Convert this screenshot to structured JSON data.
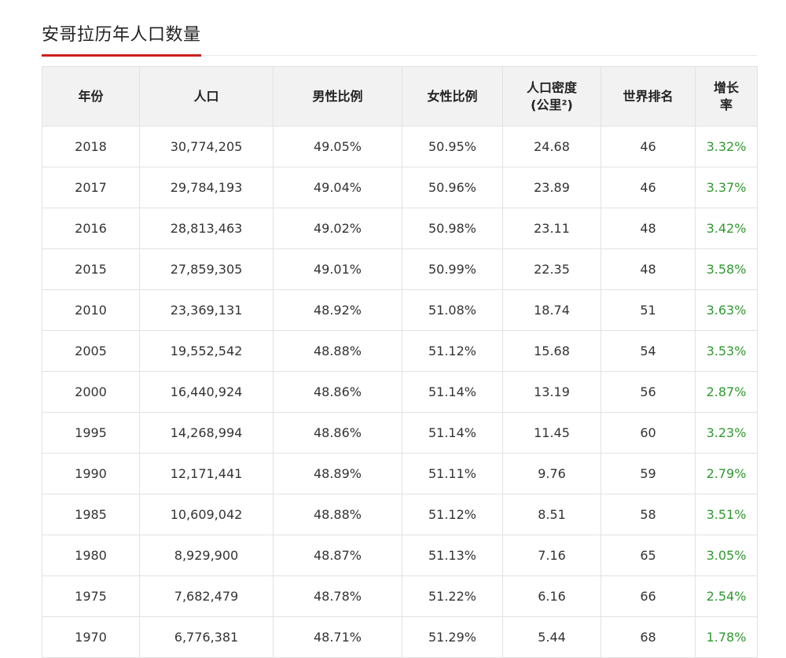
{
  "title": "安哥拉历年人口数量",
  "colors": {
    "accent": "#cc1f1f",
    "growth": "#2e9a2e",
    "header_bg": "#f2f2f2"
  },
  "table": {
    "headers": {
      "year": "年份",
      "population": "人口",
      "male_ratio": "男性比例",
      "female_ratio": "女性比例",
      "density_line1": "人口密度",
      "density_line2": "(公里²)",
      "world_rank": "世界排名",
      "growth_line1": "增长",
      "growth_line2": "率"
    },
    "rows": [
      {
        "year": "2018",
        "population": "30,774,205",
        "male": "49.05%",
        "female": "50.95%",
        "density": "24.68",
        "rank": "46",
        "growth": "3.32%"
      },
      {
        "year": "2017",
        "population": "29,784,193",
        "male": "49.04%",
        "female": "50.96%",
        "density": "23.89",
        "rank": "46",
        "growth": "3.37%"
      },
      {
        "year": "2016",
        "population": "28,813,463",
        "male": "49.02%",
        "female": "50.98%",
        "density": "23.11",
        "rank": "48",
        "growth": "3.42%"
      },
      {
        "year": "2015",
        "population": "27,859,305",
        "male": "49.01%",
        "female": "50.99%",
        "density": "22.35",
        "rank": "48",
        "growth": "3.58%"
      },
      {
        "year": "2010",
        "population": "23,369,131",
        "male": "48.92%",
        "female": "51.08%",
        "density": "18.74",
        "rank": "51",
        "growth": "3.63%"
      },
      {
        "year": "2005",
        "population": "19,552,542",
        "male": "48.88%",
        "female": "51.12%",
        "density": "15.68",
        "rank": "54",
        "growth": "3.53%"
      },
      {
        "year": "2000",
        "population": "16,440,924",
        "male": "48.86%",
        "female": "51.14%",
        "density": "13.19",
        "rank": "56",
        "growth": "2.87%"
      },
      {
        "year": "1995",
        "population": "14,268,994",
        "male": "48.86%",
        "female": "51.14%",
        "density": "11.45",
        "rank": "60",
        "growth": "3.23%"
      },
      {
        "year": "1990",
        "population": "12,171,441",
        "male": "48.89%",
        "female": "51.11%",
        "density": "9.76",
        "rank": "59",
        "growth": "2.79%"
      },
      {
        "year": "1985",
        "population": "10,609,042",
        "male": "48.88%",
        "female": "51.12%",
        "density": "8.51",
        "rank": "58",
        "growth": "3.51%"
      },
      {
        "year": "1980",
        "population": "8,929,900",
        "male": "48.87%",
        "female": "51.13%",
        "density": "7.16",
        "rank": "65",
        "growth": "3.05%"
      },
      {
        "year": "1975",
        "population": "7,682,479",
        "male": "48.78%",
        "female": "51.22%",
        "density": "6.16",
        "rank": "66",
        "growth": "2.54%"
      },
      {
        "year": "1970",
        "population": "6,776,381",
        "male": "48.71%",
        "female": "51.29%",
        "density": "5.44",
        "rank": "68",
        "growth": "1.78%"
      }
    ]
  }
}
